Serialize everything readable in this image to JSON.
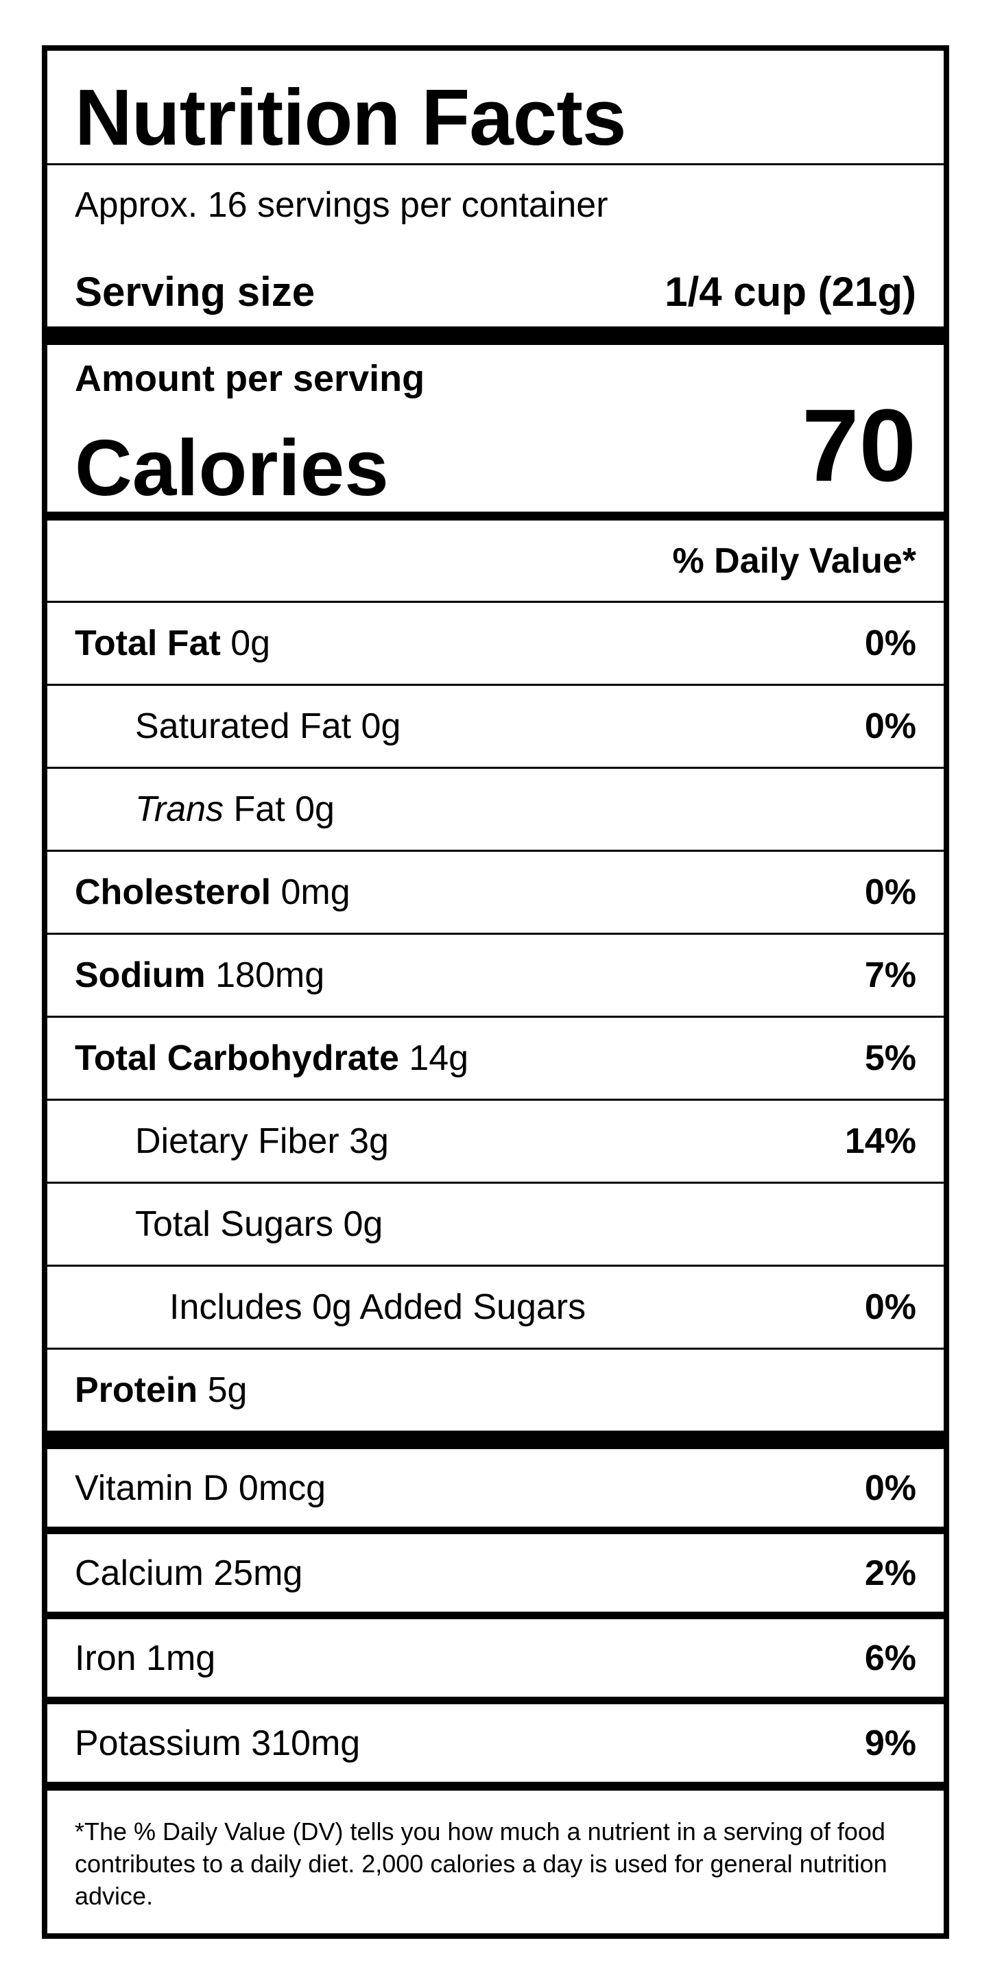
{
  "title": "Nutrition Facts",
  "servings_per_container": "Approx. 16 servings per container",
  "serving_size": {
    "label": "Serving size",
    "value": "1/4 cup (21g)"
  },
  "amount_per_serving": "Amount per serving",
  "calories": {
    "label": "Calories",
    "value": "70"
  },
  "daily_value_header": "% Daily Value*",
  "nutrients": [
    {
      "name": "Total Fat",
      "amount": "0g",
      "dv": "0%"
    },
    {
      "name": "Saturated Fat",
      "amount": "0g",
      "dv": "0%"
    },
    {
      "name": "Trans",
      "suffix": "Fat",
      "amount": "0g",
      "dv": ""
    },
    {
      "name": "Cholesterol",
      "amount": "0mg",
      "dv": "0%"
    },
    {
      "name": "Sodium",
      "amount": "180mg",
      "dv": "7%"
    },
    {
      "name": "Total Carbohydrate",
      "amount": "14g",
      "dv": "5%"
    },
    {
      "name": "Dietary Fiber",
      "amount": "3g",
      "dv": "14%"
    },
    {
      "name": "Total Sugars",
      "amount": "0g",
      "dv": ""
    },
    {
      "name": "Includes 0g Added Sugars",
      "amount": "",
      "dv": "0%"
    },
    {
      "name": "Protein",
      "amount": "5g",
      "dv": ""
    }
  ],
  "vitamins": [
    {
      "label": "Vitamin D 0mcg",
      "dv": "0%"
    },
    {
      "label": "Calcium 25mg",
      "dv": "2%"
    },
    {
      "label": "Iron 1mg",
      "dv": "6%"
    },
    {
      "label": "Potassium 310mg",
      "dv": "9%"
    }
  ],
  "footnote": "*The % Daily Value (DV) tells you how much a nutrient in a serving of food contributes to a daily diet. 2,000 calories a day is used for general nutrition advice."
}
